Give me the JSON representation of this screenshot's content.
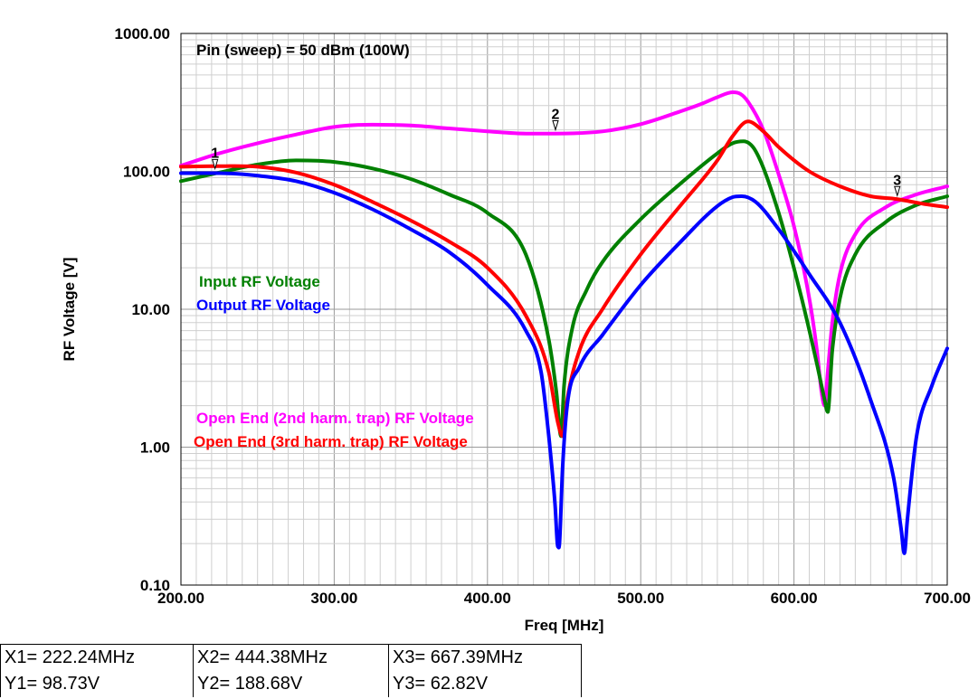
{
  "chart_data": {
    "type": "line",
    "title": "Pin (sweep) = 50 dBm (100W)",
    "xlabel": "Freq [MHz]",
    "ylabel": "RF Voltage [V]",
    "xlim": [
      200,
      700
    ],
    "ylim": [
      0.1,
      1000
    ],
    "yscale": "log",
    "grid": true,
    "x_ticks": [
      "200.00",
      "300.00",
      "400.00",
      "500.00",
      "600.00",
      "700.00"
    ],
    "y_ticks": [
      "1000.00",
      "100.00",
      "10.00",
      "1.00",
      "0.10"
    ],
    "series": [
      {
        "name": "Input RF Voltage",
        "color": "#008000",
        "x": [
          200,
          225,
          250,
          275,
          300,
          325,
          350,
          375,
          400,
          425,
          440,
          445,
          448,
          450,
          455,
          465,
          475,
          500,
          525,
          550,
          560,
          567,
          575,
          590,
          605,
          615,
          620,
          622,
          625,
          630,
          640,
          660,
          680,
          700
        ],
        "y": [
          85,
          98,
          112,
          120,
          117,
          105,
          88,
          68,
          50,
          25,
          6,
          2.5,
          1.2,
          2.8,
          7,
          14,
          22,
          45,
          80,
          135,
          160,
          165,
          140,
          50,
          12,
          4,
          2.2,
          1.8,
          5,
          12,
          25,
          43,
          57,
          66
        ]
      },
      {
        "name": "Output RF Voltage",
        "color": "#0000ff",
        "x": [
          200,
          225,
          250,
          275,
          300,
          325,
          350,
          375,
          400,
          425,
          435,
          440,
          444,
          446,
          447,
          449,
          452,
          460,
          475,
          500,
          525,
          550,
          560,
          566,
          575,
          590,
          610,
          630,
          650,
          665,
          670,
          672,
          674,
          680,
          690,
          700
        ],
        "y": [
          97,
          97,
          93,
          85,
          70,
          53,
          38,
          26,
          15,
          7,
          3.5,
          1.2,
          0.4,
          0.19,
          0.2,
          0.7,
          2,
          3.8,
          6.5,
          15,
          30,
          56,
          65,
          66,
          60,
          38,
          18,
          8,
          2.2,
          0.6,
          0.25,
          0.17,
          0.3,
          1.2,
          2.8,
          5.2
        ]
      },
      {
        "name": "Open End (2nd harm. trap) RF Voltage",
        "color": "#ff00ff",
        "x": [
          200,
          225,
          250,
          275,
          300,
          325,
          350,
          375,
          400,
          425,
          444,
          475,
          500,
          525,
          540,
          550,
          560,
          565,
          570,
          580,
          590,
          600,
          610,
          615,
          618,
          620,
          622,
          625,
          630,
          640,
          660,
          680,
          700
        ],
        "y": [
          110,
          135,
          160,
          185,
          210,
          218,
          215,
          205,
          195,
          188,
          188,
          195,
          220,
          270,
          310,
          345,
          375,
          365,
          320,
          200,
          95,
          40,
          12,
          5,
          2.5,
          2,
          3.5,
          8,
          18,
          35,
          55,
          68,
          78
        ]
      },
      {
        "name": "Open End (3rd harm. trap) RF Voltage",
        "color": "#ff0000",
        "x": [
          200,
          222,
          250,
          275,
          300,
          325,
          350,
          375,
          400,
          425,
          440,
          446,
          449,
          452,
          460,
          475,
          500,
          525,
          550,
          560,
          570,
          580,
          590,
          610,
          630,
          650,
          667,
          685,
          700
        ],
        "y": [
          108,
          109,
          108,
          98,
          80,
          60,
          44,
          31,
          20,
          9,
          3.5,
          1.5,
          1.2,
          2.2,
          5,
          10,
          25,
          55,
          120,
          180,
          230,
          195,
          150,
          100,
          78,
          66,
          63,
          58,
          55
        ]
      }
    ],
    "markers": [
      {
        "label": "1",
        "x": 222.24,
        "y": 98.73
      },
      {
        "label": "2",
        "x": 444.38,
        "y": 188.68
      },
      {
        "label": "3",
        "x": 667.39,
        "y": 62.82
      }
    ]
  },
  "cursor_table": [
    [
      "X1= 222.24MHz",
      "X2= 444.38MHz",
      "X3= 667.39MHz"
    ],
    [
      "Y1= 98.73V",
      "Y2= 188.68V",
      "Y3= 62.82V"
    ]
  ]
}
